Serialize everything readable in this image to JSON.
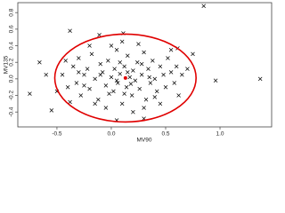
{
  "chart_data": {
    "type": "scatter",
    "xlabel": "MV90",
    "ylabel": "MV135",
    "marker": "x",
    "color": "#000000",
    "x": [
      -0.45,
      -0.4,
      -0.35,
      -0.32,
      -0.3,
      -0.28,
      -0.25,
      -0.22,
      -0.2,
      -0.18,
      -0.15,
      -0.12,
      -0.1,
      -0.08,
      -0.05,
      -0.03,
      0.0,
      0.02,
      0.03,
      0.05,
      0.06,
      0.08,
      0.1,
      0.12,
      0.14,
      0.15,
      0.17,
      0.19,
      0.2,
      0.22,
      0.24,
      0.26,
      0.28,
      0.3,
      0.32,
      0.34,
      0.36,
      0.38,
      0.4,
      0.42,
      0.45,
      0.48,
      0.5,
      0.52,
      0.55,
      0.58,
      0.6,
      0.62,
      0.65,
      0.7,
      -0.5,
      -0.42,
      -0.38,
      -0.2,
      -0.05,
      0.0,
      0.1,
      0.2,
      0.3,
      0.25,
      -0.15,
      0.45,
      0.55,
      -0.1,
      0.05,
      0.15,
      0.08,
      -0.02,
      0.35,
      0.18,
      -0.25,
      0.28,
      0.4,
      0.12,
      -0.3,
      0.85,
      1.37,
      0.96,
      -0.75,
      -0.66,
      -0.38,
      -0.11,
      0.11,
      0.61,
      -0.55,
      0.05,
      0.3,
      0.75,
      -0.6
    ],
    "values": [
      0.05,
      -0.1,
      0.15,
      -0.05,
      0.25,
      -0.2,
      0.05,
      0.12,
      -0.12,
      0.3,
      0.0,
      -0.25,
      0.18,
      0.08,
      -0.08,
      0.22,
      0.02,
      -0.15,
      0.12,
      0.35,
      -0.05,
      0.06,
      -0.3,
      0.15,
      -0.1,
      0.28,
      0.02,
      -0.2,
      0.1,
      -0.02,
      0.2,
      -0.12,
      0.05,
      0.32,
      -0.25,
      0.12,
      -0.05,
      0.22,
      0.0,
      -0.15,
      0.15,
      0.05,
      -0.1,
      0.25,
      0.08,
      -0.05,
      0.15,
      -0.2,
      0.05,
      0.12,
      -0.15,
      0.22,
      -0.28,
      0.4,
      -0.35,
      0.4,
      0.45,
      -0.4,
      -0.35,
      0.42,
      -0.3,
      -0.3,
      0.35,
      0.05,
      -0.02,
      0.08,
      0.2,
      -0.18,
      0.02,
      -0.06,
      -0.08,
      0.18,
      -0.22,
      -0.18,
      0.08,
      0.88,
      0.0,
      -0.02,
      -0.18,
      0.2,
      0.58,
      0.53,
      0.55,
      0.37,
      -0.38,
      -0.5,
      -0.48,
      0.3,
      0.05
    ],
    "ellipse": {
      "cx": 0.13,
      "cy": 0.01,
      "rx": 0.65,
      "ry": 0.53,
      "color": "#e00000"
    },
    "xlim": [
      -0.86,
      1.475
    ],
    "ylim": [
      -0.58,
      0.92
    ],
    "xticks": [
      -0.5,
      {
        "value": 0,
        "label": "0.0"
      },
      0.5,
      {
        "value": 1,
        "label": "1.0"
      }
    ],
    "yticks": [
      -0.4,
      -0.2,
      {
        "value": 0,
        "label": "0.0"
      },
      0.2,
      0.4,
      0.6,
      0.8
    ]
  }
}
